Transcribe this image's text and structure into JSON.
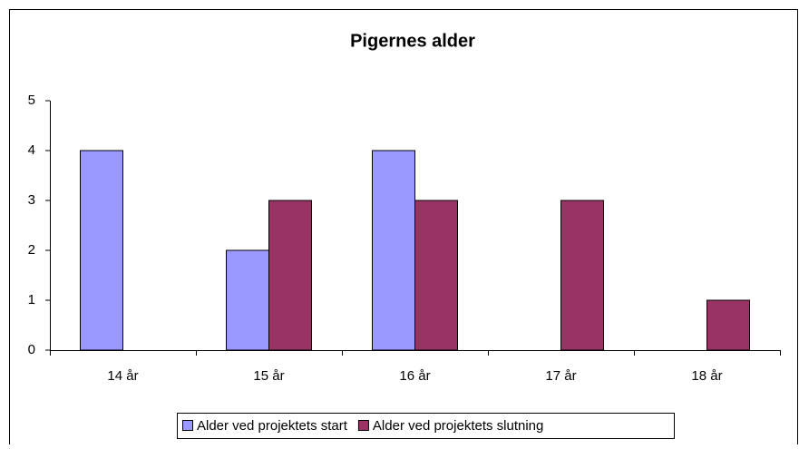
{
  "chart_data": {
    "type": "bar",
    "title": "Pigernes alder",
    "categories": [
      "14 år",
      "15 år",
      "16 år",
      "17 år",
      "18 år"
    ],
    "series": [
      {
        "name": "Alder ved projektets start",
        "color": "#9999ff",
        "values": [
          4,
          2,
          4,
          0,
          0
        ]
      },
      {
        "name": "Alder ved projektets slutning",
        "color": "#993366",
        "values": [
          0,
          3,
          3,
          3,
          1
        ]
      }
    ],
    "ylim": [
      0,
      5
    ],
    "yticks": [
      0,
      1,
      2,
      3,
      4,
      5
    ],
    "grid": false,
    "legend": "bottom"
  }
}
